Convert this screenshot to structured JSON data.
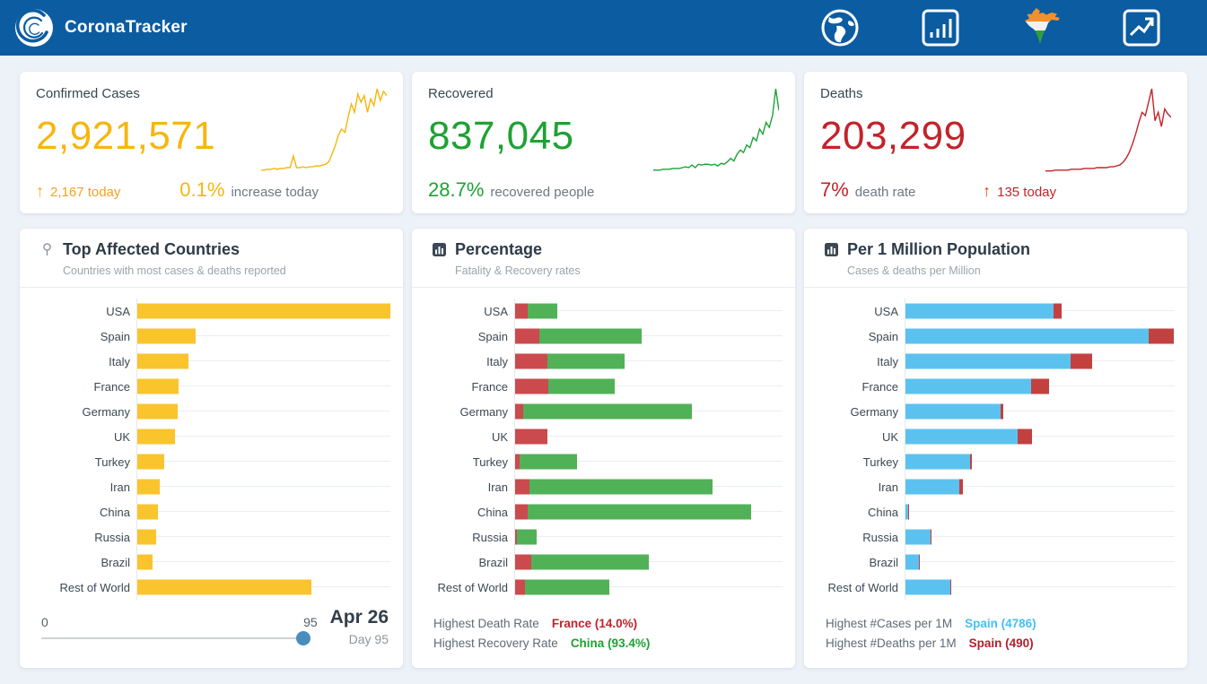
{
  "colors": {
    "navbar": "#0b5ca1",
    "confirmed": "#f6b60e",
    "confirmed_bar": "#fac42d",
    "recovered": "#1da233",
    "recovered_bar": "#51b157",
    "deaths": "#c2232b",
    "deaths_bar": "#cb4a4d",
    "cases_per_1m_bar": "#5bc2ef",
    "footer_blue": "#45c0f2",
    "footer_darkred": "#b0212c",
    "slider_thumb": "#4b8cbf"
  },
  "navbar": {
    "title": "CoronaTracker",
    "icons": [
      "globe-icon",
      "bar-chart-icon",
      "india-map-icon",
      "trend-icon"
    ]
  },
  "stat_cards": [
    {
      "title": "Confirmed Cases",
      "value": "2,921,571",
      "accent": "#f6b60e",
      "today_arrow": "↑",
      "today_text": "2,167 today",
      "pct": "0.1%",
      "pct_label": "increase today",
      "sparkline": [
        3,
        3,
        4,
        4,
        5,
        4,
        5,
        5,
        6,
        6,
        20,
        6,
        6,
        7,
        6,
        7,
        7,
        8,
        8,
        9,
        10,
        13,
        22,
        32,
        45,
        52,
        48,
        66,
        82,
        72,
        94,
        84,
        92,
        72,
        88,
        80,
        100,
        86,
        97,
        92
      ]
    },
    {
      "title": "Recovered",
      "value": "837,045",
      "accent": "#1da233",
      "pct": "28.7%",
      "pct_label": "recovered people",
      "sparkline": [
        3,
        3,
        3,
        4,
        4,
        4,
        5,
        5,
        5,
        6,
        7,
        6,
        9,
        6,
        10,
        9,
        10,
        10,
        9,
        10,
        8,
        11,
        10,
        13,
        17,
        14,
        22,
        27,
        24,
        33,
        30,
        42,
        38,
        52,
        46,
        60,
        54,
        68,
        100,
        74
      ]
    },
    {
      "title": "Deaths",
      "value": "203,299",
      "accent": "#c2232b",
      "pct": "7%",
      "pct_label": "death rate",
      "today_arrow": "↑",
      "today_text": "135 today",
      "sparkline": [
        2,
        2,
        2,
        3,
        3,
        3,
        3,
        3,
        4,
        4,
        4,
        4,
        5,
        5,
        5,
        5,
        6,
        6,
        6,
        6,
        7,
        7,
        8,
        9,
        12,
        17,
        24,
        34,
        46,
        60,
        72,
        68,
        84,
        100,
        62,
        72,
        55,
        76,
        70,
        66
      ]
    }
  ],
  "panels": [
    {
      "title": "Top Affected Countries",
      "subtitle": "Countries with most cases & deaths reported",
      "icon": "map-pin-icon",
      "slider": {
        "min_label": "0",
        "value_label": "95",
        "date": "Apr 26",
        "day": "Day 95"
      }
    },
    {
      "title": "Percentage",
      "subtitle": "Fatality & Recovery rates",
      "icon": "poll-icon",
      "footer_stats": [
        {
          "label": "Highest Death Rate",
          "value": "France (14.0%)",
          "color": "#c2232b"
        },
        {
          "label": "Highest Recovery Rate",
          "value": "China (93.4%)",
          "color": "#1da233"
        }
      ]
    },
    {
      "title": "Per 1 Million Population",
      "subtitle": "Cases & deaths per Million",
      "icon": "poll-icon",
      "footer_stats": [
        {
          "label": "Highest #Cases per 1M",
          "value": "Spain (4786)",
          "color": "#45c0f2"
        },
        {
          "label": "Highest #Deaths per 1M",
          "value": "Spain (490)",
          "color": "#b0212c"
        }
      ]
    }
  ],
  "chart_data": [
    {
      "type": "bar",
      "title": "Top Affected Countries",
      "subtitle": "Countries with most cases & deaths reported",
      "categories": [
        "USA",
        "Spain",
        "Italy",
        "France",
        "Germany",
        "UK",
        "Turkey",
        "Iran",
        "China",
        "Russia",
        "Brazil",
        "Rest of World"
      ],
      "xmax": 100,
      "xlim": [
        0,
        100
      ],
      "grid": true,
      "legend": "none",
      "series": [
        {
          "key": "cases",
          "name": "Confirmed cases (relative, % of USA)",
          "color": "#fac42d",
          "values": [
            100,
            23.1,
            20.1,
            16.4,
            16.0,
            14.9,
            10.8,
            9.0,
            8.2,
            7.5,
            6.0,
            68.7
          ]
        }
      ],
      "slider": {
        "min": 0,
        "max": 95,
        "value": 95,
        "date": "Apr 26",
        "day": "Day 95"
      }
    },
    {
      "type": "bar",
      "stacked": true,
      "title": "Percentage",
      "subtitle": "Fatality & Recovery rates",
      "categories": [
        "USA",
        "Spain",
        "Italy",
        "France",
        "Germany",
        "UK",
        "Turkey",
        "Iran",
        "China",
        "Russia",
        "Brazil",
        "Rest of World"
      ],
      "xmax": 112,
      "xlim": [
        0,
        112
      ],
      "grid": true,
      "legend": "none",
      "series": [
        {
          "key": "fatality",
          "name": "Fatality rate (%)",
          "color": "#cb4a4d",
          "values": [
            5.3,
            10.2,
            13.5,
            14.0,
            3.5,
            13.6,
            2.0,
            6.0,
            5.4,
            0.8,
            6.6,
            4.3
          ]
        },
        {
          "key": "recovery",
          "name": "Recovery rate (%)",
          "color": "#51b157",
          "values": [
            12.4,
            42.9,
            32.3,
            27.6,
            70.5,
            0,
            24.1,
            76.7,
            93.4,
            8.3,
            49.3,
            35.3
          ]
        }
      ],
      "annotations": {
        "highest_death_rate": "France (14.0%)",
        "highest_recovery_rate": "China (93.4%)"
      }
    },
    {
      "type": "bar",
      "stacked": true,
      "title": "Per 1 Million Population",
      "subtitle": "Cases & deaths per Million",
      "categories": [
        "USA",
        "Spain",
        "Italy",
        "France",
        "Germany",
        "UK",
        "Turkey",
        "Iran",
        "China",
        "Russia",
        "Brazil",
        "Rest of World"
      ],
      "xmax": 5300,
      "xlim": [
        0,
        5300
      ],
      "grid": true,
      "legend": "none",
      "series": [
        {
          "key": "cases-per-1m",
          "name": "Cases per 1M",
          "color": "#5bc2ef",
          "values": [
            2914,
            4786,
            3245,
            2480,
            1872,
            2200,
            1274,
            1063,
            58,
            502,
            270,
            888
          ]
        },
        {
          "key": "deaths-per-1m",
          "name": "Deaths per 1M",
          "color": "#c2413f",
          "values": [
            155,
            490,
            425,
            345,
            58,
            290,
            40,
            65,
            3,
            6,
            14,
            18
          ]
        }
      ],
      "annotations": {
        "highest_cases_per_1m": "Spain (4786)",
        "highest_deaths_per_1m": "Spain (490)"
      }
    }
  ]
}
